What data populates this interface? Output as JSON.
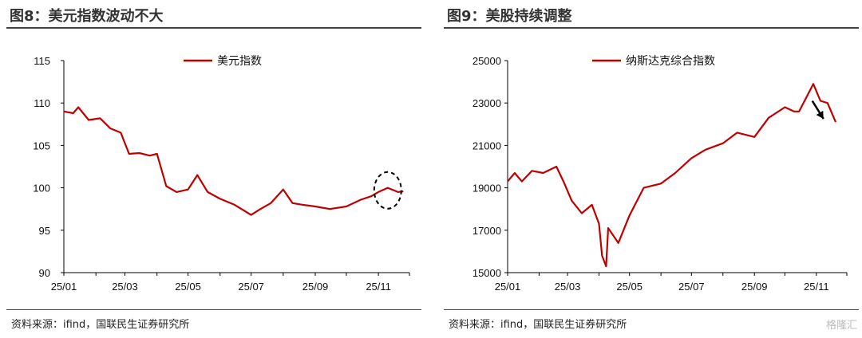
{
  "left": {
    "title": "图8：美元指数波动不大",
    "source": "资料来源：ifind，国联民生证券研究所"
  },
  "right": {
    "title": "图9：美股持续调整",
    "source": "资料来源：ifind，国联民生证券研究所"
  },
  "watermark": "格隆汇",
  "colors": {
    "line": "#c00000",
    "axis": "#000000",
    "annotation": "#000000"
  },
  "chart_data": [
    {
      "type": "line",
      "ylim": [
        90,
        115
      ],
      "yticks": [
        90,
        95,
        100,
        105,
        110,
        115
      ],
      "x_range": [
        "2025-01-01",
        "2025-12-01"
      ],
      "xticks": [
        "25/01",
        "25/03",
        "25/05",
        "25/07",
        "25/09",
        "25/11"
      ],
      "grid": false,
      "legend": "top",
      "annotation": "dashed circle around latest values",
      "series": [
        {
          "name": "美元指数",
          "x": [
            "2025-01-01",
            "2025-01-10",
            "2025-01-15",
            "2025-01-25",
            "2025-02-05",
            "2025-02-15",
            "2025-02-25",
            "2025-03-05",
            "2025-03-15",
            "2025-03-25",
            "2025-04-01",
            "2025-04-10",
            "2025-04-20",
            "2025-05-01",
            "2025-05-10",
            "2025-05-20",
            "2025-06-01",
            "2025-06-15",
            "2025-07-01",
            "2025-07-10",
            "2025-07-20",
            "2025-08-01",
            "2025-08-10",
            "2025-08-20",
            "2025-09-01",
            "2025-09-15",
            "2025-10-01",
            "2025-10-15",
            "2025-10-25",
            "2025-11-01",
            "2025-11-10",
            "2025-11-20",
            "2025-11-25"
          ],
          "values": [
            109.0,
            108.8,
            109.5,
            108.0,
            108.2,
            107.0,
            106.5,
            104.0,
            104.1,
            103.8,
            104.0,
            100.2,
            99.5,
            99.8,
            101.5,
            99.5,
            98.7,
            98.0,
            96.8,
            97.5,
            98.2,
            99.8,
            98.2,
            98.0,
            97.8,
            97.5,
            97.8,
            98.6,
            99.0,
            99.5,
            100.0,
            99.5,
            99.6
          ]
        }
      ]
    },
    {
      "type": "line",
      "ylim": [
        15000,
        25000
      ],
      "yticks": [
        15000,
        17000,
        19000,
        21000,
        23000,
        25000
      ],
      "x_range": [
        "2025-01-01",
        "2025-12-01"
      ],
      "xticks": [
        "25/01",
        "25/03",
        "25/05",
        "25/07",
        "25/09",
        "25/11"
      ],
      "grid": false,
      "legend": "top",
      "annotation": "arrow pointing down-right near latest values",
      "series": [
        {
          "name": "纳斯达克综合指数",
          "x": [
            "2025-01-01",
            "2025-01-08",
            "2025-01-15",
            "2025-01-25",
            "2025-02-05",
            "2025-02-18",
            "2025-02-25",
            "2025-03-05",
            "2025-03-15",
            "2025-03-25",
            "2025-04-01",
            "2025-04-04",
            "2025-04-08",
            "2025-04-10",
            "2025-04-20",
            "2025-05-01",
            "2025-05-15",
            "2025-06-01",
            "2025-06-15",
            "2025-07-01",
            "2025-07-15",
            "2025-08-01",
            "2025-08-15",
            "2025-09-01",
            "2025-09-15",
            "2025-10-01",
            "2025-10-10",
            "2025-10-15",
            "2025-10-29",
            "2025-11-05",
            "2025-11-12",
            "2025-11-20"
          ],
          "values": [
            19300,
            19700,
            19300,
            19800,
            19700,
            20000,
            19300,
            18400,
            17800,
            18200,
            17300,
            15800,
            15300,
            17100,
            16400,
            17700,
            19000,
            19200,
            19700,
            20400,
            20800,
            21100,
            21600,
            21400,
            22300,
            22800,
            22600,
            22600,
            23900,
            23100,
            23000,
            22100
          ]
        }
      ]
    }
  ]
}
